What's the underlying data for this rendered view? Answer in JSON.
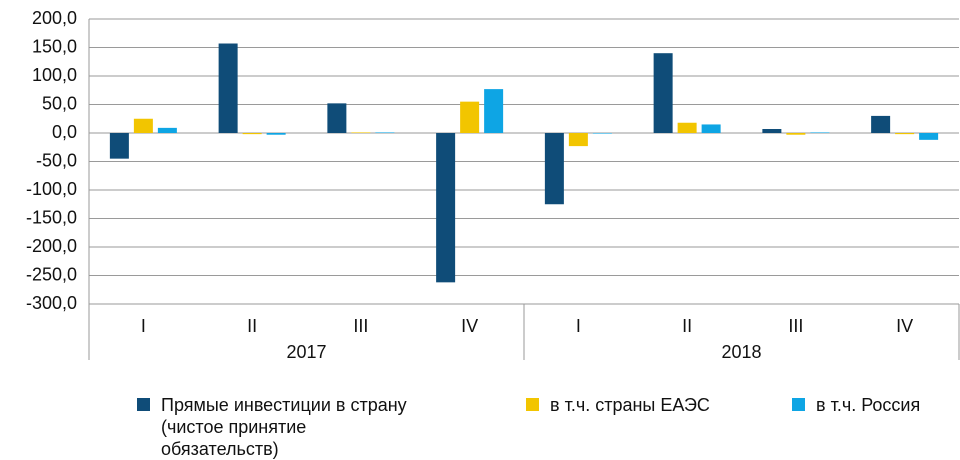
{
  "chart_data": {
    "type": "bar",
    "categories": [
      "I",
      "II",
      "III",
      "IV",
      "I",
      "II",
      "III",
      "IV"
    ],
    "groups": [
      {
        "label": "2017",
        "span": 4
      },
      {
        "label": "2018",
        "span": 4
      }
    ],
    "series": [
      {
        "name": "Прямые инвестиции в страну (чистое принятие обязательств)",
        "color": "#0f4c78",
        "values": [
          -45,
          157,
          52,
          -262,
          -125,
          140,
          7,
          30
        ]
      },
      {
        "name": "в т.ч. страны ЕАЭС",
        "color": "#f2c500",
        "values": [
          25,
          -2,
          1,
          55,
          -23,
          18,
          -3,
          -2
        ]
      },
      {
        "name": "в т.ч. Россия",
        "color": "#0ea5e4",
        "values": [
          9,
          -3,
          1,
          77,
          -1,
          15,
          1,
          -12
        ]
      }
    ],
    "ylim": [
      -300,
      200
    ],
    "yticks": [
      {
        "value": 200,
        "label": "200,0"
      },
      {
        "value": 150,
        "label": "150,0"
      },
      {
        "value": 100,
        "label": "100,0"
      },
      {
        "value": 50,
        "label": "50,0"
      },
      {
        "value": 0,
        "label": "0,0"
      },
      {
        "value": -50,
        "label": "-50,0"
      },
      {
        "value": -100,
        "label": "-100,0"
      },
      {
        "value": -150,
        "label": "-150,0"
      },
      {
        "value": -200,
        "label": "-200,0"
      },
      {
        "value": -250,
        "label": "-250,0"
      },
      {
        "value": -300,
        "label": "-300,0"
      }
    ],
    "grid": true,
    "legend": "bottom"
  }
}
